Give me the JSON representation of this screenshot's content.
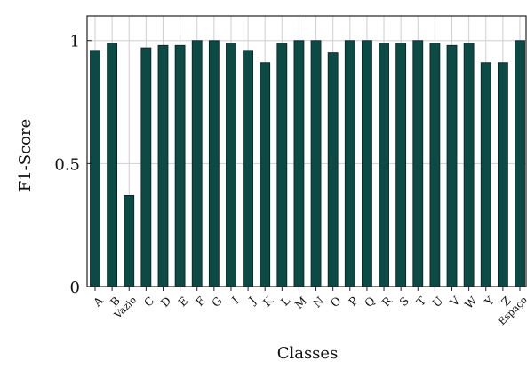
{
  "chart_data": {
    "type": "bar",
    "title": "",
    "xlabel": "Classes",
    "ylabel": "F1-Score",
    "categories": [
      "A",
      "B",
      "Vazio",
      "C",
      "D",
      "E",
      "F",
      "G",
      "I",
      "J",
      "K",
      "L",
      "M",
      "N",
      "O",
      "P",
      "Q",
      "R",
      "S",
      "T",
      "U",
      "V",
      "W",
      "Y",
      "Z",
      "Espaço"
    ],
    "values": [
      0.96,
      0.99,
      0.37,
      0.97,
      0.98,
      0.98,
      1.0,
      1.0,
      0.99,
      0.96,
      0.91,
      0.99,
      1.0,
      1.0,
      0.95,
      1.0,
      1.0,
      0.99,
      0.99,
      1.0,
      0.99,
      0.98,
      0.99,
      0.91,
      0.91,
      1.0
    ],
    "ylim": [
      0,
      1.1
    ],
    "yticks": [
      0,
      0.5,
      1
    ],
    "ytick_labels": [
      "0",
      "0.5",
      "1"
    ],
    "grid": true,
    "bar_color": "#0b4a45",
    "bar_edge_color": "#0a1f1d"
  }
}
